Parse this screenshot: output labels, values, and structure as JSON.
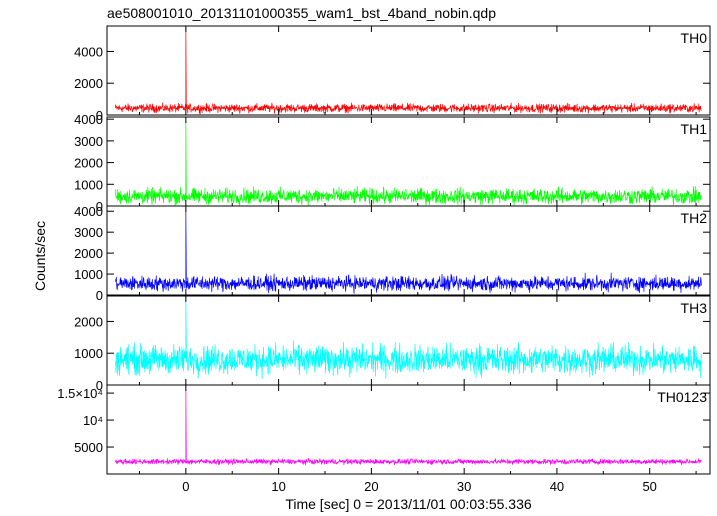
{
  "title": "ae508001010_20131101000355_wam1_bst_4band_nobin.qdp",
  "chart_data": {
    "type": "line",
    "x": {
      "label": "Time [sec] 0 = 2013/11/01 00:03:55.336",
      "lim": [
        -8.5,
        56.5
      ],
      "ticks": [
        0,
        10,
        20,
        30,
        40,
        50
      ]
    },
    "ylabel": "Counts/sec",
    "panels": [
      {
        "name": "TH0",
        "color": "#ff0000",
        "ylim": [
          0,
          5600
        ],
        "yticks": [
          0,
          2000,
          4000
        ],
        "ytick_labels": [
          "0",
          "2000",
          "4000"
        ],
        "baseline": 430,
        "noise": 250,
        "peak_x": 0.0,
        "peak_y": 5500
      },
      {
        "name": "TH1",
        "color": "#00ff00",
        "ylim": [
          0,
          4100
        ],
        "yticks": [
          0,
          1000,
          2000,
          3000,
          4000
        ],
        "ytick_labels": [
          "0",
          "1000",
          "2000",
          "3000",
          "4000"
        ],
        "baseline": 450,
        "noise": 330,
        "peak_x": 0.0,
        "peak_y": 3950
      },
      {
        "name": "TH2",
        "color": "#0000ff",
        "ylim": [
          0,
          4250
        ],
        "yticks": [
          0,
          1000,
          2000,
          3000,
          4000
        ],
        "ytick_labels": [
          "0",
          "1000",
          "2000",
          "3000",
          "4000"
        ],
        "baseline": 550,
        "noise": 330,
        "peak_x": 0.0,
        "peak_y": 4200
      },
      {
        "name": "TH3",
        "color": "#00ffff",
        "ylim": [
          0,
          2800
        ],
        "yticks": [
          0,
          1000,
          2000
        ],
        "ytick_labels": [
          "0",
          "1000",
          "2000"
        ],
        "baseline": 800,
        "noise": 420,
        "peak_x": 0.0,
        "peak_y": 2750
      },
      {
        "name": "TH0123",
        "color": "#ff00ff",
        "ylim": [
          0,
          16500
        ],
        "yticks": [
          5000,
          10000,
          15000
        ],
        "ytick_labels": [
          "5000",
          "10⁴",
          "1.5×10⁴"
        ],
        "baseline": 2300,
        "noise": 450,
        "peak_x": 0.0,
        "peak_y": 16200
      }
    ]
  }
}
